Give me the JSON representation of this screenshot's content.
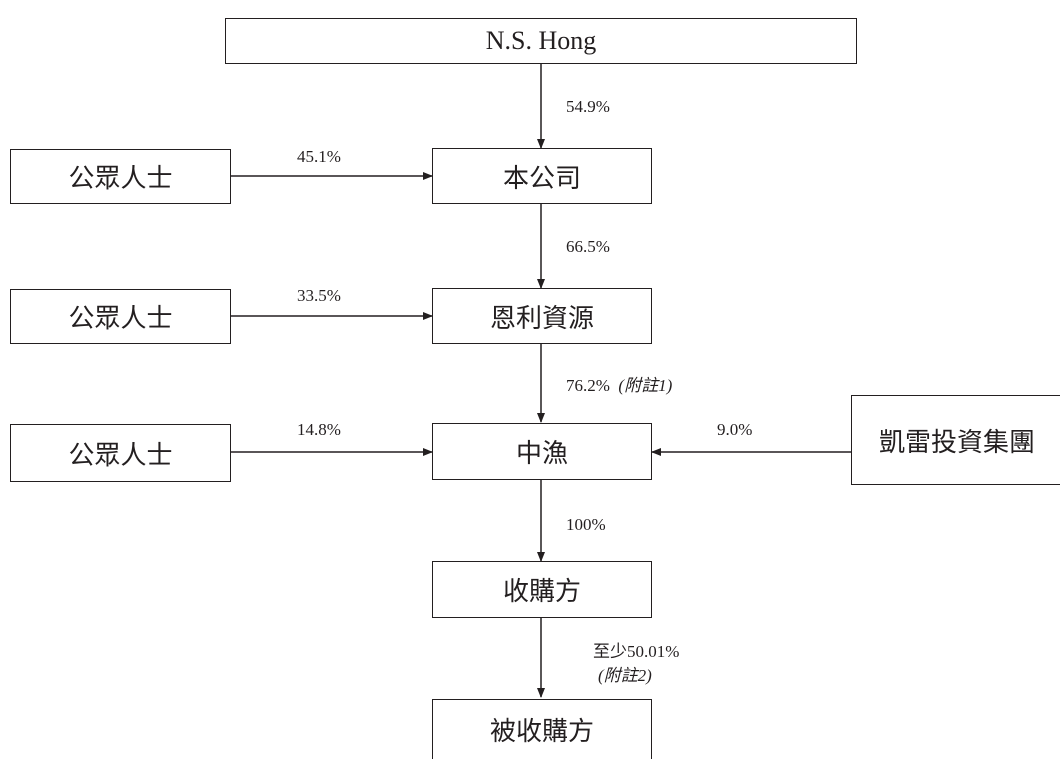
{
  "nodes": {
    "top": "N.S. Hong",
    "company": "本公司",
    "public_1": "公眾人士",
    "enli": "恩利資源",
    "public_2": "公眾人士",
    "zhongyu": "中漁",
    "public_3": "公眾人士",
    "kailei": "凱雷投資集團",
    "acquirer": "收購方",
    "target": "被收購方"
  },
  "edges": {
    "hong_to_company": "54.9%",
    "public1_to_company": "45.1%",
    "company_to_enli": "66.5%",
    "public2_to_enli": "33.5%",
    "enli_to_zhongyu": "76.2%",
    "enli_to_zhongyu_note": "(附註1)",
    "public3_to_zhongyu": "14.8%",
    "kailei_to_zhongyu": "9.0%",
    "zhongyu_to_acquirer": "100%",
    "acquirer_to_target": "至少50.01%",
    "acquirer_to_target_note": "(附註2)"
  }
}
